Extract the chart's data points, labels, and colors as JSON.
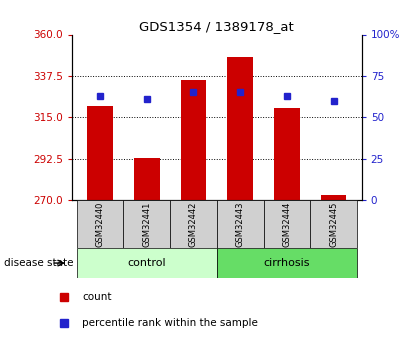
{
  "title": "GDS1354 / 1389178_at",
  "samples": [
    "GSM32440",
    "GSM32441",
    "GSM32442",
    "GSM32443",
    "GSM32444",
    "GSM32445"
  ],
  "bar_values": [
    321,
    293,
    335,
    348,
    320,
    273
  ],
  "percentile_values": [
    63,
    61,
    65,
    65,
    63,
    60
  ],
  "y_min": 270,
  "y_max": 360,
  "y_ticks": [
    270,
    292.5,
    315,
    337.5,
    360
  ],
  "y_right_ticks": [
    0,
    25,
    50,
    75,
    100
  ],
  "bar_color": "#cc0000",
  "percentile_color": "#2222cc",
  "control_color": "#ccffcc",
  "cirrhosis_color": "#66dd66",
  "label_color_left": "#cc0000",
  "label_color_right": "#2222cc",
  "bar_width": 0.55,
  "legend_count_label": "count",
  "legend_percentile_label": "percentile rank within the sample",
  "disease_state_label": "disease state",
  "control_label": "control",
  "cirrhosis_label": "cirrhosis"
}
